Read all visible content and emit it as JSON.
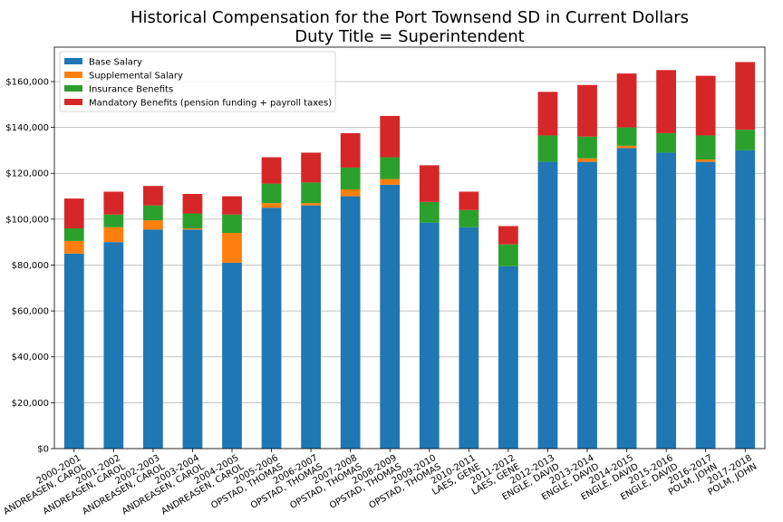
{
  "chart_data": {
    "type": "bar",
    "stacked": true,
    "title": "Historical Compensation for the Port Townsend SD in Current Dollars",
    "subtitle": "Duty Title = Superintendent",
    "xlabel": "",
    "ylabel": "",
    "ylim": [
      0,
      175000
    ],
    "yticks": [
      0,
      20000,
      40000,
      60000,
      80000,
      100000,
      120000,
      140000,
      160000
    ],
    "ytick_labels": [
      "$0",
      "$20,000",
      "$40,000",
      "$60,000",
      "$80,000",
      "$100,000",
      "$120,000",
      "$140,000",
      "$160,000"
    ],
    "grid": "horizontal",
    "legend_position": "top-left",
    "categories": [
      "2000-2001\nANDREASEN, CAROL",
      "2001-2002\nANDREASEN, CAROL",
      "2002-2003\nANDREASEN, CAROL",
      "2003-2004\nANDREASEN, CAROL",
      "2004-2005\nANDREASEN, CAROL",
      "2005-2006\nOPSTAD, THOMAS",
      "2006-2007\nOPSTAD, THOMAS",
      "2007-2008\nOPSTAD, THOMAS",
      "2008-2009\nOPSTAD, THOMAS",
      "2009-2010\nOPSTAD, THOMAS",
      "2010-2011\nLAES, GENE",
      "2011-2012\nLAES, GENE",
      "2012-2013\nENGLE, DAVID",
      "2013-2014\nENGLE, DAVID",
      "2014-2015\nENGLE, DAVID",
      "2015-2016\nENGLE, DAVID",
      "2016-2017\nPOLM, JOHN",
      "2017-2018\nPOLM, JOHN"
    ],
    "series": [
      {
        "name": "Base Salary",
        "color": "#1f77b4",
        "values": [
          85000,
          90000,
          95500,
          95500,
          81000,
          105000,
          106000,
          110000,
          115000,
          98500,
          96500,
          79500,
          125000,
          125000,
          131000,
          129000,
          125000,
          130000
        ]
      },
      {
        "name": "Supplemental Salary",
        "color": "#ff7f0e",
        "values": [
          5500,
          6500,
          4000,
          500,
          13000,
          2000,
          1000,
          3000,
          2500,
          0,
          0,
          0,
          0,
          1500,
          1000,
          0,
          1000,
          0
        ]
      },
      {
        "name": "Insurance Benefits",
        "color": "#2ca02c",
        "values": [
          5500,
          5500,
          6500,
          6500,
          8000,
          8500,
          9000,
          9500,
          9500,
          9000,
          7500,
          9500,
          11500,
          9500,
          8000,
          8500,
          10500,
          9000
        ]
      },
      {
        "name": "Mandatory Benefits (pension funding + payroll taxes)",
        "color": "#d62728",
        "values": [
          13000,
          10000,
          8500,
          8500,
          8000,
          11500,
          13000,
          15000,
          18000,
          16000,
          8000,
          8000,
          19000,
          22500,
          23500,
          27500,
          26000,
          29500
        ]
      }
    ]
  }
}
